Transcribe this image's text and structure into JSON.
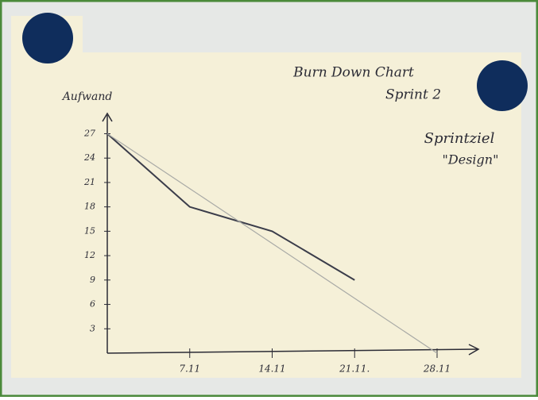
{
  "chart_data": {
    "type": "line",
    "title": "Burn Down Chart",
    "subtitle": "Sprint 2",
    "annotations": [
      "Sprintziel",
      "\"Design\""
    ],
    "ylabel": "Aufwand",
    "categories": [
      null,
      "7.11",
      "14.11",
      "21.11.",
      "28.11"
    ],
    "series": [
      {
        "color": "#3b3d4a",
        "values": [
          27,
          18,
          15,
          9,
          null
        ]
      },
      {
        "color": "#a9aaa6",
        "values": [
          27,
          20.25,
          13.5,
          6.75,
          0
        ]
      }
    ],
    "ylim": [
      0,
      29
    ],
    "yticks": [
      3,
      6,
      9,
      12,
      15,
      18,
      21,
      24,
      27
    ],
    "grid": false
  }
}
